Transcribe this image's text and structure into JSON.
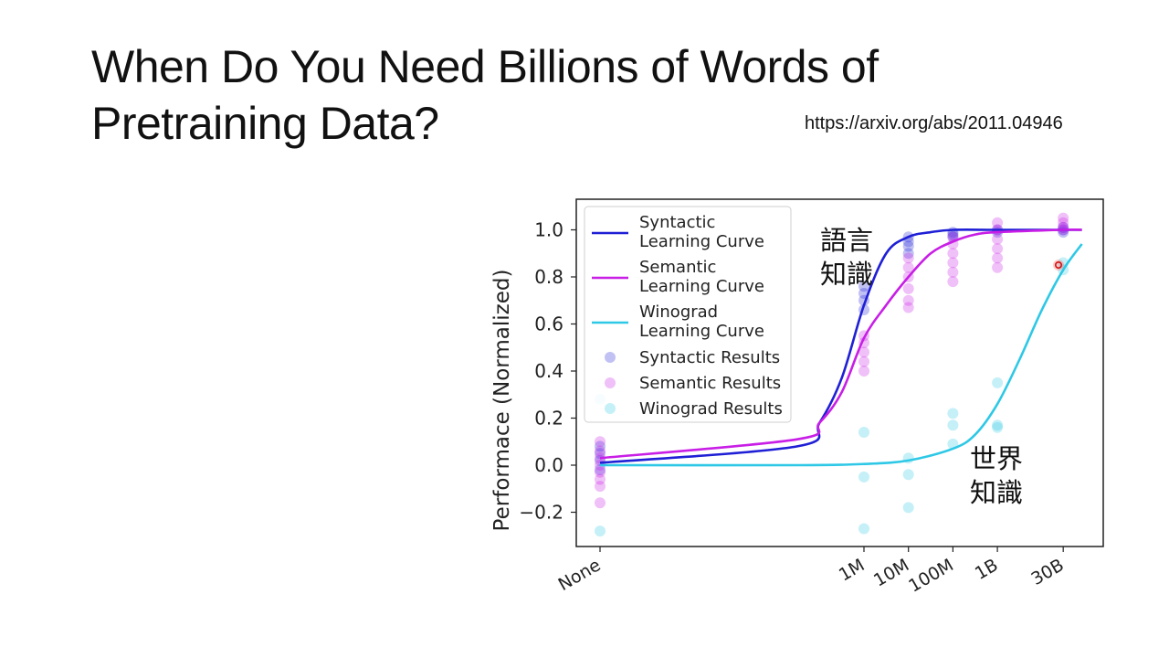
{
  "slide": {
    "title": "When Do You Need Billions of Words of Pretraining Data?",
    "link": "https://arxiv.org/abs/2011.04946"
  },
  "colors": {
    "syntactic": "#1f1fd6",
    "semantic": "#c81ee6",
    "winograd": "#2ec8e6"
  },
  "chart_data": {
    "type": "line",
    "title": "",
    "xlabel": "",
    "ylabel": "Performace (Normalized)",
    "x_scale": "log10 (words of pretraining data), categorical 'None' at far left",
    "xticks": [
      "None",
      "1M",
      "10M",
      "100M",
      "1B",
      "30B"
    ],
    "xtick_log10": [
      null,
      6,
      7,
      8,
      9,
      10.48
    ],
    "ylim": [
      -0.35,
      1.1
    ],
    "yticks": [
      -0.2,
      0.0,
      0.2,
      0.4,
      0.6,
      0.8,
      1.0
    ],
    "ytick_labels": [
      "−0.2",
      "0.0",
      "0.2",
      "0.4",
      "0.6",
      "0.8",
      "1.0"
    ],
    "grid": false,
    "legend_position": "top-left",
    "annotations": [
      {
        "text": "語言\n知識",
        "near": "upper middle"
      },
      {
        "text": "世界\n知識",
        "near": "lower right"
      }
    ],
    "series": [
      {
        "name": "Syntactic\nLearning Curve",
        "kind": "curve",
        "color_key": "syntactic",
        "points": [
          [
            "None",
            0.01
          ],
          [
            4.5,
            0.08
          ],
          [
            5.0,
            0.18
          ],
          [
            5.5,
            0.37
          ],
          [
            6.0,
            0.68
          ],
          [
            6.5,
            0.9
          ],
          [
            7.0,
            0.97
          ],
          [
            7.5,
            0.99
          ],
          [
            8.0,
            1.0
          ],
          [
            9.0,
            1.0
          ],
          [
            10.48,
            1.0
          ],
          [
            10.9,
            1.0
          ]
        ]
      },
      {
        "name": "Semantic\nLearning Curve",
        "kind": "curve",
        "color_key": "semantic",
        "points": [
          [
            "None",
            0.03
          ],
          [
            4.5,
            0.11
          ],
          [
            5.0,
            0.18
          ],
          [
            5.5,
            0.31
          ],
          [
            6.0,
            0.54
          ],
          [
            6.5,
            0.68
          ],
          [
            7.0,
            0.8
          ],
          [
            7.5,
            0.9
          ],
          [
            8.0,
            0.95
          ],
          [
            8.5,
            0.98
          ],
          [
            9.0,
            0.99
          ],
          [
            10.48,
            1.0
          ],
          [
            10.9,
            1.0
          ]
        ]
      },
      {
        "name": "Winograd\nLearning Curve",
        "kind": "curve",
        "color_key": "winograd",
        "points": [
          [
            "None",
            0.0
          ],
          [
            4.5,
            0.0
          ],
          [
            6.0,
            0.005
          ],
          [
            7.0,
            0.02
          ],
          [
            8.0,
            0.07
          ],
          [
            8.5,
            0.13
          ],
          [
            9.0,
            0.26
          ],
          [
            9.5,
            0.45
          ],
          [
            10.0,
            0.66
          ],
          [
            10.48,
            0.83
          ],
          [
            10.9,
            0.94
          ]
        ]
      },
      {
        "name": "Syntactic Results",
        "kind": "scatter",
        "color_key": "syntactic",
        "points": [
          [
            "None",
            0.05
          ],
          [
            "None",
            0.02
          ],
          [
            "None",
            -0.02
          ],
          [
            "None",
            0.08
          ],
          [
            6,
            0.76
          ],
          [
            6,
            0.73
          ],
          [
            6,
            0.7
          ],
          [
            6,
            0.66
          ],
          [
            7,
            0.97
          ],
          [
            7,
            0.95
          ],
          [
            7,
            0.93
          ],
          [
            7,
            0.9
          ],
          [
            8,
            0.99
          ],
          [
            8,
            0.98
          ],
          [
            8,
            0.97
          ],
          [
            9,
            1.0
          ],
          [
            9,
            0.99
          ],
          [
            10.48,
            1.01
          ],
          [
            10.48,
            1.0
          ],
          [
            10.48,
            0.99
          ]
        ]
      },
      {
        "name": "Semantic Results",
        "kind": "scatter",
        "color_key": "semantic",
        "points": [
          [
            "None",
            0.1
          ],
          [
            "None",
            0.06
          ],
          [
            "None",
            0.03
          ],
          [
            "None",
            0.0
          ],
          [
            "None",
            -0.03
          ],
          [
            "None",
            -0.06
          ],
          [
            "None",
            -0.09
          ],
          [
            "None",
            -0.16
          ],
          [
            6,
            0.55
          ],
          [
            6,
            0.52
          ],
          [
            6,
            0.48
          ],
          [
            6,
            0.44
          ],
          [
            6,
            0.4
          ],
          [
            7,
            0.88
          ],
          [
            7,
            0.84
          ],
          [
            7,
            0.8
          ],
          [
            7,
            0.75
          ],
          [
            7,
            0.7
          ],
          [
            7,
            0.67
          ],
          [
            8,
            0.97
          ],
          [
            8,
            0.94
          ],
          [
            8,
            0.9
          ],
          [
            8,
            0.86
          ],
          [
            8,
            0.82
          ],
          [
            8,
            0.78
          ],
          [
            9,
            1.03
          ],
          [
            9,
            1.0
          ],
          [
            9,
            0.96
          ],
          [
            9,
            0.92
          ],
          [
            9,
            0.88
          ],
          [
            9,
            0.84
          ],
          [
            10.48,
            1.05
          ],
          [
            10.48,
            1.03
          ],
          [
            10.48,
            1.01
          ],
          [
            10.48,
            1.0
          ]
        ]
      },
      {
        "name": "Winograd Results",
        "kind": "scatter",
        "color_key": "winograd",
        "points": [
          [
            "None",
            0.28
          ],
          [
            "None",
            -0.28
          ],
          [
            6,
            0.14
          ],
          [
            6,
            -0.05
          ],
          [
            6,
            -0.27
          ],
          [
            7,
            0.03
          ],
          [
            7,
            -0.04
          ],
          [
            7,
            -0.18
          ],
          [
            8,
            0.22
          ],
          [
            8,
            0.17
          ],
          [
            8,
            0.09
          ],
          [
            9,
            0.35
          ],
          [
            9,
            0.17
          ],
          [
            9,
            0.16
          ],
          [
            10.48,
            0.86
          ],
          [
            10.48,
            0.83
          ]
        ]
      }
    ]
  }
}
